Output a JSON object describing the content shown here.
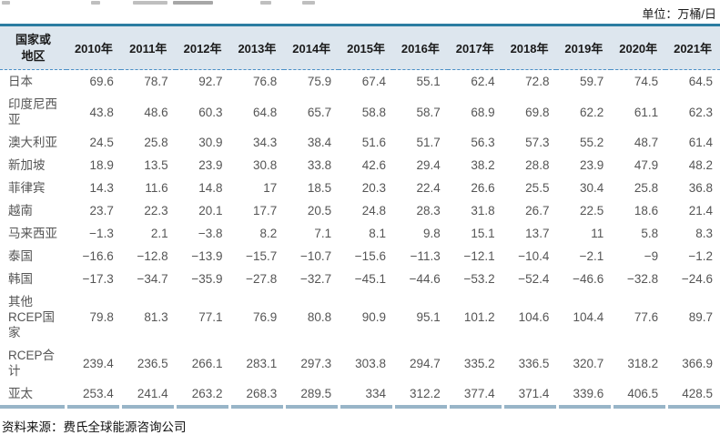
{
  "meta": {
    "unit_label": "单位：万桶/日",
    "source_label": "资料来源：费氏全球能源咨询公司"
  },
  "colors": {
    "top_border": "#2b7da1",
    "header_background": "#dde6ee",
    "header_dashed_line": "#4a8fc7",
    "bottom_rule": "#98b5c8",
    "body_text": "#555555",
    "header_text": "#1a1a1a"
  },
  "table": {
    "corner_header": "国家或地区",
    "year_headers": [
      "2010年",
      "2011年",
      "2012年",
      "2013年",
      "2014年",
      "2015年",
      "2016年",
      "2017年",
      "2018年",
      "2019年",
      "2020年",
      "2021年"
    ],
    "rows": [
      {
        "label": "日本",
        "values": [
          "69.6",
          "78.7",
          "92.7",
          "76.8",
          "75.9",
          "67.4",
          "55.1",
          "62.4",
          "72.8",
          "59.7",
          "74.5",
          "64.5"
        ]
      },
      {
        "label": "印度尼西亚",
        "values": [
          "43.8",
          "48.6",
          "60.3",
          "64.8",
          "65.7",
          "58.8",
          "58.7",
          "68.9",
          "69.8",
          "62.2",
          "61.1",
          "62.3"
        ]
      },
      {
        "label": "澳大利亚",
        "values": [
          "24.5",
          "25.8",
          "30.9",
          "34.3",
          "38.4",
          "51.6",
          "51.7",
          "56.3",
          "57.3",
          "55.2",
          "48.7",
          "61.4"
        ]
      },
      {
        "label": "新加坡",
        "values": [
          "18.9",
          "13.5",
          "23.9",
          "30.8",
          "33.8",
          "42.6",
          "29.4",
          "38.2",
          "28.8",
          "23.9",
          "47.9",
          "48.2"
        ]
      },
      {
        "label": "菲律宾",
        "values": [
          "14.3",
          "11.6",
          "14.8",
          "17",
          "18.5",
          "20.3",
          "22.4",
          "26.6",
          "25.5",
          "30.4",
          "25.8",
          "36.8"
        ]
      },
      {
        "label": "越南",
        "values": [
          "23.7",
          "22.3",
          "20.1",
          "17.7",
          "20.5",
          "24.8",
          "28.3",
          "31.8",
          "26.7",
          "22.5",
          "18.6",
          "21.4"
        ]
      },
      {
        "label": "马来西亚",
        "values": [
          "−1.3",
          "2.1",
          "−3.8",
          "8.2",
          "7.1",
          "8.1",
          "9.8",
          "15.1",
          "13.7",
          "11",
          "5.8",
          "8.3"
        ]
      },
      {
        "label": "泰国",
        "values": [
          "−16.6",
          "−12.8",
          "−13.9",
          "−15.7",
          "−10.7",
          "−15.6",
          "−11.3",
          "−12.1",
          "−10.4",
          "−2.1",
          "−9",
          "−1.2"
        ]
      },
      {
        "label": "韩国",
        "values": [
          "−17.3",
          "−34.7",
          "−35.9",
          "−27.8",
          "−32.7",
          "−45.1",
          "−44.6",
          "−53.2",
          "−52.4",
          "−46.6",
          "−32.8",
          "−24.6"
        ]
      },
      {
        "label": "其他RCEP国家",
        "values": [
          "79.8",
          "81.3",
          "77.1",
          "76.9",
          "80.8",
          "90.9",
          "95.1",
          "101.2",
          "104.6",
          "104.4",
          "77.6",
          "89.7"
        ]
      },
      {
        "label": "RCEP合计",
        "values": [
          "239.4",
          "236.5",
          "266.1",
          "283.1",
          "297.3",
          "303.8",
          "294.7",
          "335.2",
          "336.5",
          "320.7",
          "318.2",
          "366.9"
        ]
      },
      {
        "label": "亚太",
        "values": [
          "253.4",
          "241.4",
          "263.2",
          "268.3",
          "289.5",
          "334",
          "312.2",
          "377.4",
          "371.4",
          "339.6",
          "406.5",
          "428.5"
        ]
      }
    ]
  }
}
